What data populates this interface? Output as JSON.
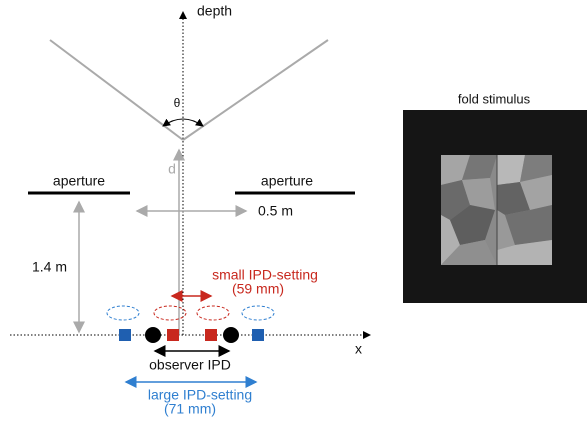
{
  "diagram": {
    "depth_label": "depth",
    "angle_label": "θ",
    "distance_label": "d",
    "left_aperture": "aperture",
    "right_aperture": "aperture",
    "aperture_width": "0.5 m",
    "viewing_distance": "1.4 m",
    "small_ipd": {
      "label": "small IPD-setting",
      "value": "(59 mm)"
    },
    "x_label": "x",
    "observer_ipd": "observer IPD",
    "large_ipd": {
      "label": "large IPD-setting",
      "value": "(71 mm)"
    },
    "stimulus_title": "fold stimulus"
  }
}
